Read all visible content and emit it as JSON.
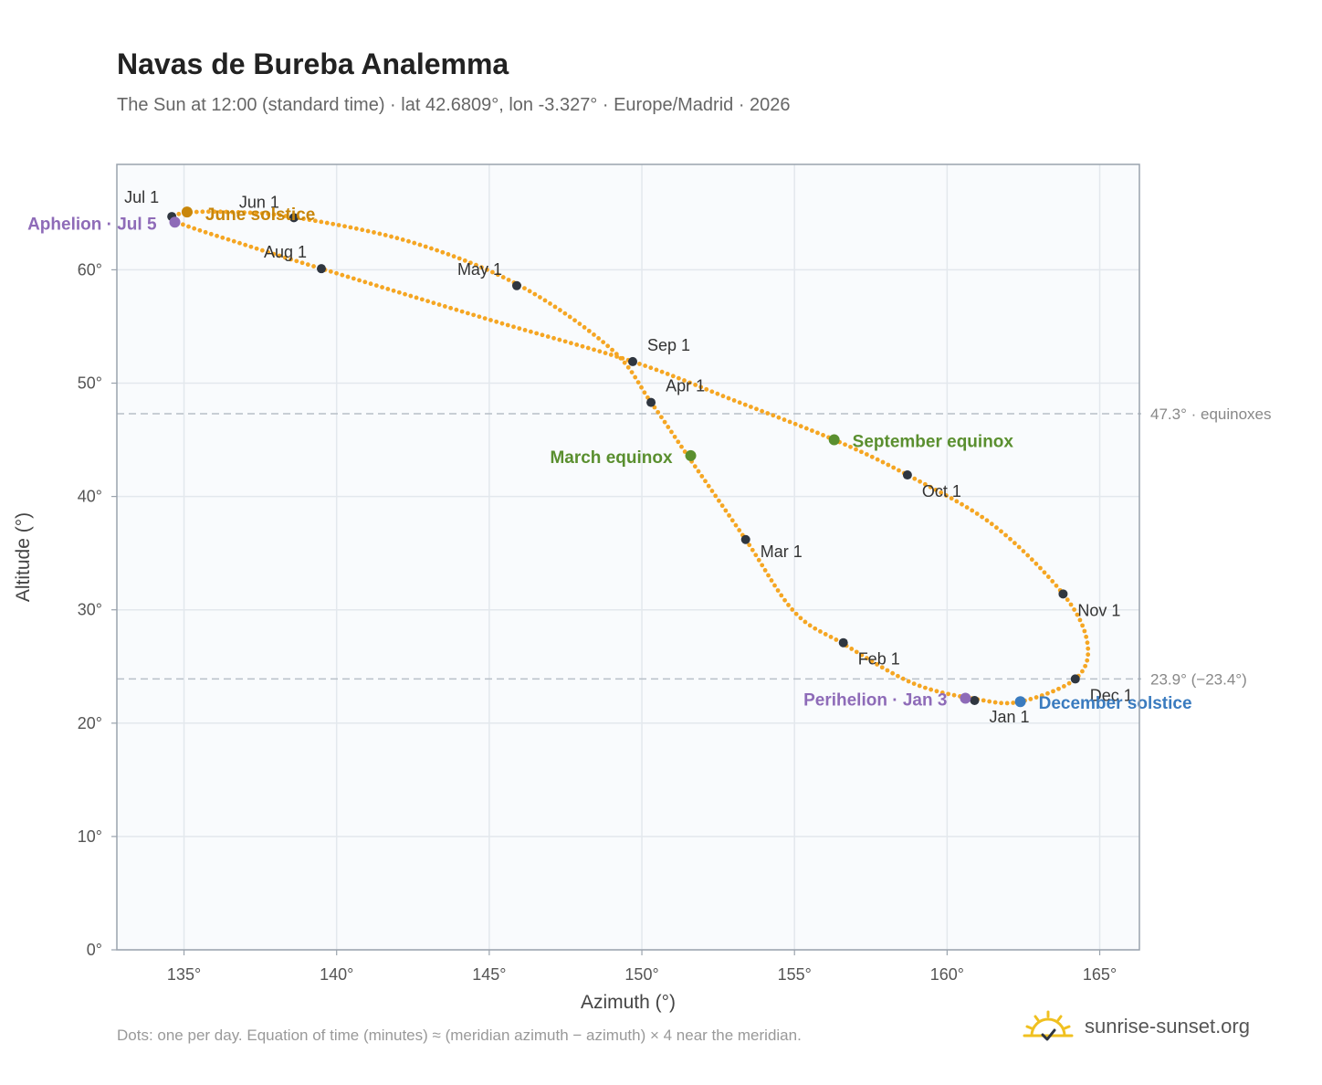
{
  "header": {
    "title": "Navas de Bureba Analemma",
    "subtitle": "The Sun at 12:00 (standard time) · lat 42.6809°, lon -3.327° · Europe/Madrid · 2026"
  },
  "footer": {
    "note": "Dots: one per day. Equation of time (minutes) ≈ (meridian azimuth − azimuth) × 4 near the meridian.",
    "brand": "sunrise-sunset.org"
  },
  "colors": {
    "curve": "#f5a623",
    "month_marker": "#2f3640",
    "june_solstice": "#c8860a",
    "december_solstice": "#3a7bbf",
    "equinox": "#5a8f2f",
    "apsis": "#8e6bb8",
    "reference_line": "#b8c0c8",
    "plot_background": "#f9fbfd",
    "grid": "#e3e8ed",
    "frame": "#9aa3ad",
    "logo": "#f0c020"
  },
  "chart_data": {
    "type": "scatter",
    "title": "Navas de Bureba Analemma",
    "xlabel": "Azimuth (°)",
    "ylabel": "Altitude (°)",
    "xlim": [
      132.8,
      166.3
    ],
    "ylim": [
      0,
      69.3
    ],
    "x_ticks": [
      135,
      140,
      145,
      150,
      155,
      160,
      165
    ],
    "y_ticks": [
      0,
      10,
      20,
      30,
      40,
      50,
      60
    ],
    "x_tick_labels": [
      "135°",
      "140°",
      "145°",
      "150°",
      "155°",
      "160°",
      "165°"
    ],
    "y_tick_labels": [
      "0°",
      "10°",
      "20°",
      "30°",
      "40°",
      "50°",
      "60°"
    ],
    "grid": true,
    "analemma_path": [
      [
        161.0,
        22.1
      ],
      [
        158.9,
        23.5
      ],
      [
        156.6,
        27.0
      ],
      [
        155.0,
        29.8
      ],
      [
        153.4,
        36.2
      ],
      [
        151.5,
        43.6
      ],
      [
        150.3,
        48.3
      ],
      [
        149.0,
        53.0
      ],
      [
        146.0,
        58.6
      ],
      [
        142.5,
        62.4
      ],
      [
        138.7,
        64.6
      ],
      [
        136.5,
        65.1
      ],
      [
        135.0,
        65.0
      ],
      [
        134.7,
        64.3
      ],
      [
        137.0,
        62.2
      ],
      [
        139.5,
        60.1
      ],
      [
        145.0,
        55.6
      ],
      [
        149.7,
        51.9
      ],
      [
        153.0,
        48.5
      ],
      [
        156.3,
        45.0
      ],
      [
        158.7,
        41.9
      ],
      [
        161.5,
        37.5
      ],
      [
        163.8,
        31.4
      ],
      [
        164.6,
        27.0
      ],
      [
        164.2,
        23.9
      ],
      [
        162.4,
        21.9
      ],
      [
        161.0,
        22.1
      ]
    ],
    "month_markers": [
      {
        "label": "Jan 1",
        "az": 160.9,
        "alt": 22.0
      },
      {
        "label": "Feb 1",
        "az": 156.6,
        "alt": 27.1
      },
      {
        "label": "Mar 1",
        "az": 153.4,
        "alt": 36.2
      },
      {
        "label": "Apr 1",
        "az": 150.3,
        "alt": 48.3
      },
      {
        "label": "May 1",
        "az": 145.9,
        "alt": 58.6
      },
      {
        "label": "Jun 1",
        "az": 138.6,
        "alt": 64.6
      },
      {
        "label": "Jul 1",
        "az": 134.6,
        "alt": 64.7
      },
      {
        "label": "Aug 1",
        "az": 139.5,
        "alt": 60.1
      },
      {
        "label": "Sep 1",
        "az": 149.7,
        "alt": 51.9
      },
      {
        "label": "Oct 1",
        "az": 158.7,
        "alt": 41.9
      },
      {
        "label": "Nov 1",
        "az": 163.8,
        "alt": 31.4
      },
      {
        "label": "Dec 1",
        "az": 164.2,
        "alt": 23.9
      }
    ],
    "events": [
      {
        "key": "june_solstice",
        "label": "June solstice",
        "az": 135.1,
        "alt": 65.1
      },
      {
        "key": "december_solstice",
        "label": "December solstice",
        "az": 162.4,
        "alt": 21.9
      },
      {
        "key": "march_equinox",
        "label": "March equinox",
        "az": 151.6,
        "alt": 43.6
      },
      {
        "key": "september_equinox",
        "label": "September equinox",
        "az": 156.3,
        "alt": 45.0
      },
      {
        "key": "aphelion",
        "label": "Aphelion · Jul 5",
        "az": 134.7,
        "alt": 64.2
      },
      {
        "key": "perihelion",
        "label": "Perihelion · Jan 3",
        "az": 160.6,
        "alt": 22.2
      }
    ],
    "reference_lines": [
      {
        "label": "47.3° · equinoxes",
        "alt": 47.3
      },
      {
        "label": "23.9° (−23.4°)",
        "alt": 23.9
      }
    ]
  }
}
